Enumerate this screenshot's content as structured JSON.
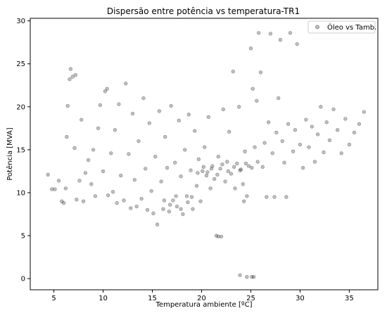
{
  "chart_data": {
    "type": "scatter",
    "title": "Dispersão entre potência vs temperatura-TR1",
    "xlabel": "Temperatura ambiente [ºC]",
    "ylabel": "Potência [MVA]",
    "xlim": [
      2.6,
      37.9
    ],
    "ylim": [
      -1.3,
      30.3
    ],
    "xticks": [
      5,
      10,
      15,
      20,
      25,
      30,
      35
    ],
    "yticks": [
      0,
      5,
      10,
      15,
      20,
      25,
      30
    ],
    "grid": false,
    "legend_position": "top-right",
    "series": [
      {
        "name": "Óleo vs Tamb.",
        "color": "#000000",
        "opacity": 0.25,
        "points": [
          [
            4.4,
            12.1
          ],
          [
            4.8,
            10.4
          ],
          [
            5.1,
            10.4
          ],
          [
            5.5,
            11.4
          ],
          [
            5.8,
            9.0
          ],
          [
            6.0,
            8.8
          ],
          [
            6.2,
            10.5
          ],
          [
            6.3,
            16.5
          ],
          [
            6.4,
            20.1
          ],
          [
            6.6,
            23.2
          ],
          [
            6.7,
            24.4
          ],
          [
            6.9,
            23.5
          ],
          [
            7.2,
            23.7
          ],
          [
            7.1,
            15.2
          ],
          [
            7.3,
            9.2
          ],
          [
            7.6,
            11.4
          ],
          [
            7.8,
            18.5
          ],
          [
            8.0,
            9.0
          ],
          [
            8.2,
            12.3
          ],
          [
            8.5,
            13.8
          ],
          [
            8.8,
            11.0
          ],
          [
            9.0,
            15.0
          ],
          [
            9.2,
            9.6
          ],
          [
            9.5,
            17.5
          ],
          [
            9.7,
            20.2
          ],
          [
            10.0,
            12.5
          ],
          [
            10.2,
            21.8
          ],
          [
            10.4,
            22.1
          ],
          [
            10.5,
            9.7
          ],
          [
            10.8,
            14.6
          ],
          [
            11.0,
            10.1
          ],
          [
            11.2,
            17.3
          ],
          [
            11.4,
            8.8
          ],
          [
            11.6,
            20.3
          ],
          [
            11.8,
            12.0
          ],
          [
            12.1,
            9.1
          ],
          [
            12.3,
            22.7
          ],
          [
            12.6,
            14.5
          ],
          [
            12.8,
            8.2
          ],
          [
            13.0,
            19.2
          ],
          [
            13.2,
            11.5
          ],
          [
            13.4,
            8.4
          ],
          [
            13.6,
            16.0
          ],
          [
            13.9,
            9.3
          ],
          [
            14.1,
            21.0
          ],
          [
            14.3,
            12.8
          ],
          [
            14.5,
            8.0
          ],
          [
            14.7,
            18.1
          ],
          [
            14.9,
            10.2
          ],
          [
            15.1,
            7.6
          ],
          [
            15.3,
            14.2
          ],
          [
            15.5,
            6.3
          ],
          [
            15.7,
            19.5
          ],
          [
            15.9,
            11.3
          ],
          [
            16.1,
            8.1
          ],
          [
            16.3,
            16.5
          ],
          [
            16.5,
            12.9
          ],
          [
            16.7,
            7.8
          ],
          [
            16.9,
            20.1
          ],
          [
            17.1,
            9.1
          ],
          [
            17.3,
            13.5
          ],
          [
            17.5,
            8.4
          ],
          [
            17.7,
            18.4
          ],
          [
            17.9,
            11.9
          ],
          [
            18.1,
            7.5
          ],
          [
            18.3,
            15.0
          ],
          [
            18.5,
            9.6
          ],
          [
            18.7,
            19.1
          ],
          [
            18.9,
            12.6
          ],
          [
            19.1,
            8.1
          ],
          [
            19.3,
            17.2
          ],
          [
            19.5,
            10.8
          ],
          [
            19.7,
            13.9
          ],
          [
            19.9,
            9.0
          ],
          [
            20.1,
            12.5
          ],
          [
            20.3,
            15.3
          ],
          [
            20.5,
            12.0
          ],
          [
            20.7,
            18.8
          ],
          [
            20.9,
            10.5
          ],
          [
            21.1,
            13.1
          ],
          [
            21.3,
            11.6
          ],
          [
            21.5,
            5.0
          ],
          [
            21.7,
            14.2
          ],
          [
            21.9,
            12.8
          ],
          [
            22.0,
            4.9
          ],
          [
            22.2,
            19.7
          ],
          [
            22.4,
            11.3
          ],
          [
            22.6,
            13.6
          ],
          [
            22.8,
            17.1
          ],
          [
            23.0,
            12.2
          ],
          [
            23.2,
            24.1
          ],
          [
            23.4,
            10.5
          ],
          [
            23.6,
            13.4
          ],
          [
            23.8,
            20.0
          ],
          [
            24.0,
            12.7
          ],
          [
            24.2,
            11.0
          ],
          [
            24.4,
            14.8
          ],
          [
            24.6,
            9.6
          ],
          [
            24.8,
            13.1
          ],
          [
            25.0,
            26.8
          ],
          [
            25.2,
            22.1
          ],
          [
            25.4,
            15.3
          ],
          [
            25.6,
            20.7
          ],
          [
            25.8,
            28.6
          ],
          [
            26.0,
            24.0
          ],
          [
            26.2,
            13.0
          ],
          [
            26.4,
            15.8
          ],
          [
            26.6,
            9.5
          ],
          [
            26.8,
            18.2
          ],
          [
            27.0,
            28.5
          ],
          [
            27.2,
            14.6
          ],
          [
            27.4,
            9.5
          ],
          [
            27.6,
            17.0
          ],
          [
            27.8,
            21.0
          ],
          [
            28.0,
            27.8
          ],
          [
            28.2,
            16.0
          ],
          [
            28.4,
            13.5
          ],
          [
            28.6,
            9.5
          ],
          [
            28.8,
            18.0
          ],
          [
            29.0,
            28.6
          ],
          [
            29.3,
            14.8
          ],
          [
            29.5,
            17.3
          ],
          [
            29.7,
            27.3
          ],
          [
            30.0,
            15.6
          ],
          [
            30.3,
            12.9
          ],
          [
            30.6,
            18.5
          ],
          [
            30.9,
            15.3
          ],
          [
            31.2,
            17.7
          ],
          [
            31.5,
            13.6
          ],
          [
            31.8,
            16.8
          ],
          [
            32.1,
            20.0
          ],
          [
            32.4,
            14.7
          ],
          [
            32.7,
            18.2
          ],
          [
            33.0,
            16.1
          ],
          [
            33.4,
            19.7
          ],
          [
            33.8,
            17.3
          ],
          [
            34.2,
            14.6
          ],
          [
            34.6,
            18.6
          ],
          [
            35.0,
            15.6
          ],
          [
            35.5,
            17.0
          ],
          [
            36.0,
            18.0
          ],
          [
            36.5,
            19.4
          ],
          [
            23.9,
            0.4
          ],
          [
            24.6,
            0.2
          ],
          [
            25.1,
            0.2
          ],
          [
            25.3,
            0.2
          ],
          [
            24.3,
            9.0
          ],
          [
            21.7,
            4.9
          ],
          [
            16.2,
            9.1
          ],
          [
            16.8,
            8.6
          ],
          [
            17.4,
            9.6
          ],
          [
            17.9,
            8.1
          ],
          [
            18.6,
            8.9
          ],
          [
            19.0,
            9.5
          ],
          [
            19.6,
            12.3
          ],
          [
            20.2,
            13.0
          ],
          [
            20.6,
            12.4
          ],
          [
            21.0,
            12.8
          ],
          [
            21.6,
            12.1
          ],
          [
            22.1,
            13.3
          ],
          [
            22.7,
            12.5
          ],
          [
            23.3,
            13.0
          ],
          [
            23.9,
            12.6
          ],
          [
            24.5,
            13.4
          ],
          [
            25.1,
            12.9
          ],
          [
            25.7,
            13.6
          ]
        ]
      }
    ]
  }
}
